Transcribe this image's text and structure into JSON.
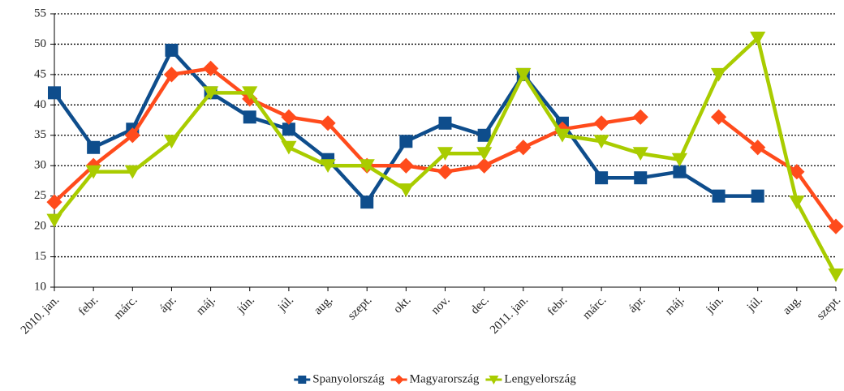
{
  "chart_data": {
    "type": "line",
    "categories": [
      "2010. jan.",
      "febr.",
      "márc.",
      "ápr.",
      "máj.",
      "jún.",
      "júl.",
      "aug.",
      "szept.",
      "okt.",
      "nov.",
      "dec.",
      "2011. jan.",
      "febr.",
      "márc.",
      "ápr.",
      "máj.",
      "jún.",
      "júl.",
      "aug.",
      "szept."
    ],
    "series": [
      {
        "name": "Spanyolország",
        "color": "#0e4d8c",
        "marker": "square",
        "values": [
          42,
          33,
          36,
          49,
          42,
          38,
          36,
          31,
          24,
          34,
          37,
          35,
          45,
          37,
          28,
          28,
          29,
          25,
          25,
          null,
          null
        ]
      },
      {
        "name": "Magyarország",
        "color": "#ff4b1c",
        "marker": "diamond",
        "values": [
          24,
          30,
          35,
          45,
          46,
          41,
          38,
          37,
          30,
          30,
          29,
          30,
          33,
          36,
          37,
          38,
          null,
          38,
          33,
          29,
          20
        ]
      },
      {
        "name": "Lengyelország",
        "color": "#a9cc00",
        "marker": "triangle-down",
        "values": [
          21,
          29,
          29,
          34,
          42,
          42,
          33,
          30,
          30,
          26,
          32,
          32,
          45,
          35,
          34,
          32,
          31,
          45,
          51,
          24,
          12
        ]
      }
    ],
    "ylim": [
      10,
      55
    ],
    "yticks": [
      10,
      15,
      20,
      25,
      30,
      35,
      40,
      45,
      50,
      55
    ],
    "grid": true,
    "legend": "bottom"
  }
}
